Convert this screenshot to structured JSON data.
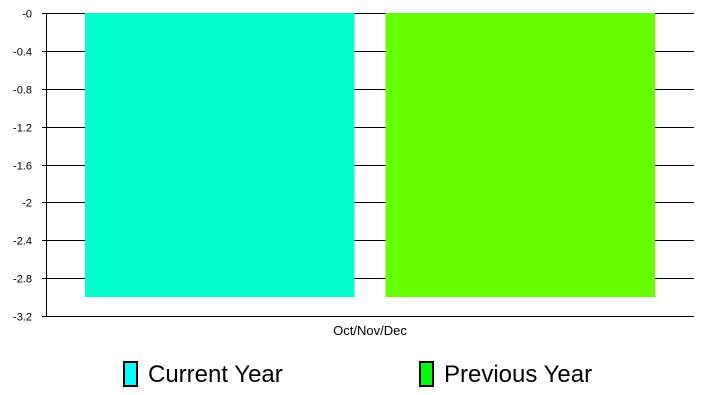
{
  "chart_data": {
    "type": "bar",
    "title": "",
    "xlabel": "",
    "ylabel": "",
    "categories": [
      "Oct/Nov/Dec"
    ],
    "series": [
      {
        "name": "Current Year",
        "values": [
          -3.0
        ],
        "color": "#00ffcc",
        "legend_color": "#00ffff"
      },
      {
        "name": "Previous Year",
        "values": [
          -3.0
        ],
        "color": "#66ff00",
        "legend_color": "#00ff00"
      }
    ],
    "ylim": [
      -3.2,
      0
    ],
    "yticks": [
      "-0",
      "-0.4",
      "-0.8",
      "-1.2",
      "-1.6",
      "-2",
      "-2.4",
      "-2.8",
      "-3.2"
    ],
    "ytick_values": [
      0,
      -0.4,
      -0.8,
      -1.2,
      -1.6,
      -2,
      -2.4,
      -2.8,
      -3.2
    ],
    "grid": true,
    "legend_position": "bottom"
  }
}
